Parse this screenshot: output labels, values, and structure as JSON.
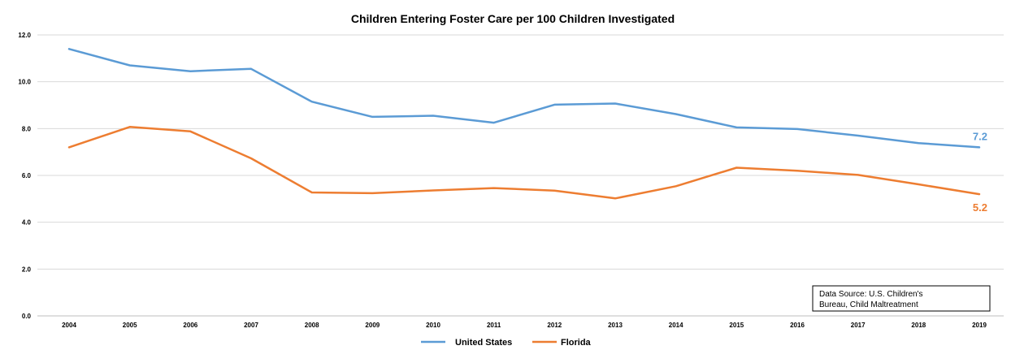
{
  "chart_data": {
    "type": "line",
    "title": "Children Entering  Foster Care per 100 Children Investigated",
    "xlabel": "",
    "ylabel": "",
    "categories": [
      "2004",
      "2005",
      "2006",
      "2007",
      "2008",
      "2009",
      "2010",
      "2011",
      "2012",
      "2013",
      "2014",
      "2015",
      "2016",
      "2017",
      "2018",
      "2019"
    ],
    "ylim": [
      0,
      12
    ],
    "yticks": [
      "0.0",
      "2.0",
      "4.0",
      "6.0",
      "8.0",
      "10.0",
      "12.0"
    ],
    "grid": "horizontal",
    "legend_position": "bottom",
    "series": [
      {
        "name": "United States",
        "color": "#5b9bd5",
        "values": [
          11.4,
          10.7,
          10.45,
          10.55,
          9.15,
          8.5,
          8.55,
          8.25,
          9.02,
          9.07,
          8.62,
          8.05,
          7.98,
          7.7,
          7.38,
          7.2
        ],
        "end_label": "7.2"
      },
      {
        "name": "Florida",
        "color": "#ed7d31",
        "values": [
          7.2,
          8.07,
          7.88,
          6.73,
          5.27,
          5.24,
          5.36,
          5.46,
          5.35,
          5.02,
          5.54,
          6.33,
          6.2,
          6.02,
          5.62,
          5.2
        ],
        "end_label": "5.2"
      }
    ],
    "annotation": {
      "line1": "Data Source: U.S. Children's",
      "line2": "Bureau, Child Maltreatment"
    }
  }
}
